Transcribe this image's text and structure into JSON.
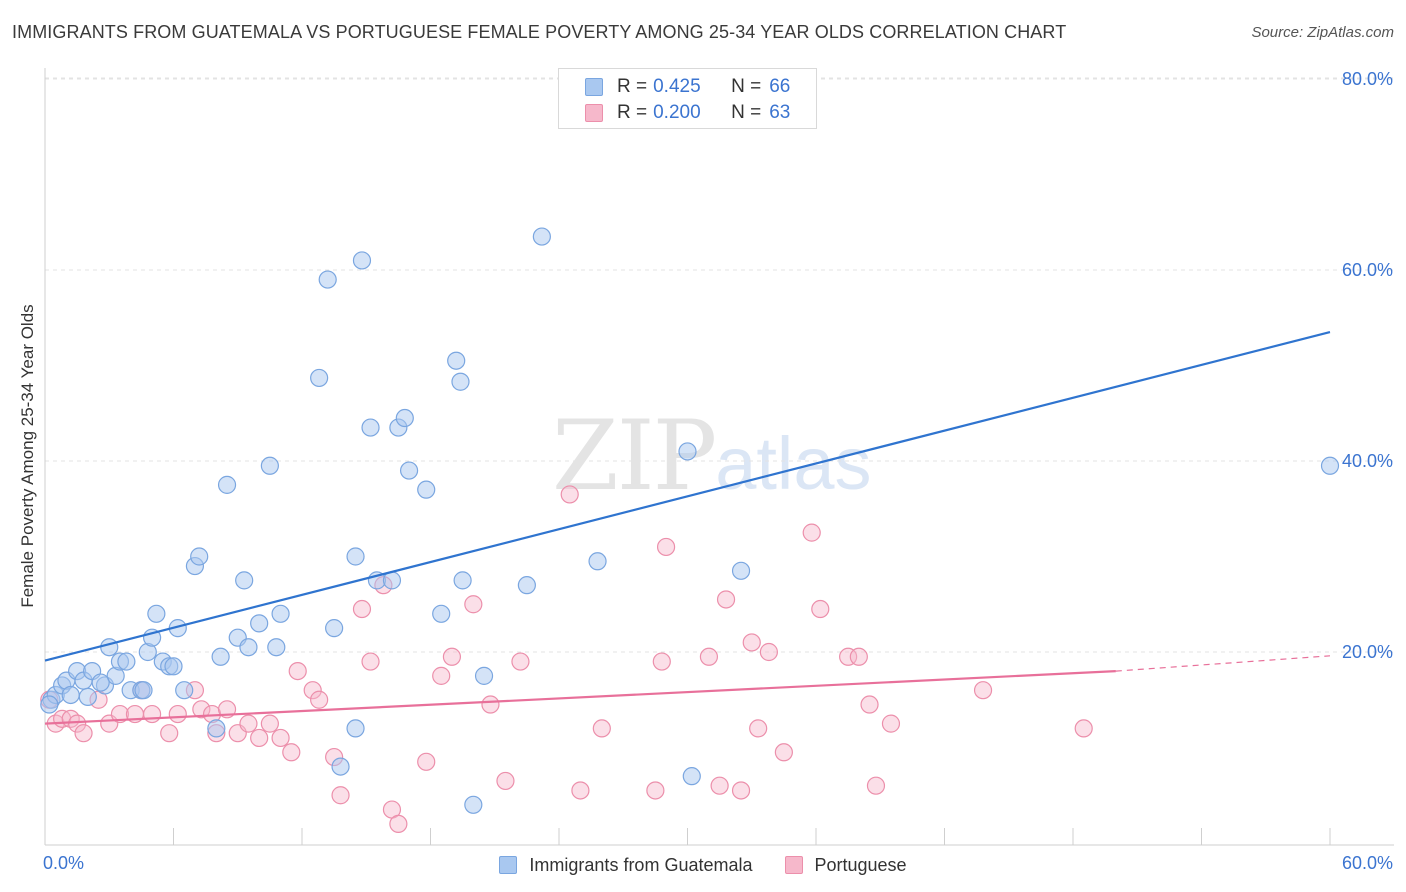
{
  "title": "IMMIGRANTS FROM GUATEMALA VS PORTUGUESE FEMALE POVERTY AMONG 25-34 YEAR OLDS CORRELATION CHART",
  "source": "Source: ZipAtlas.com",
  "watermark": {
    "zip": "ZIP",
    "atlas": "atlas"
  },
  "legend": {
    "rows": [
      {
        "r_label": "R =",
        "r_value": "0.425",
        "n_label": "N =",
        "n_value": "66",
        "color": "#a9c8f0"
      },
      {
        "r_label": "R =",
        "r_value": "0.200",
        "n_label": "N =",
        "n_value": "63",
        "color": "#f6b8cb"
      }
    ]
  },
  "colors": {
    "blue_fill": "#a9c8f0",
    "blue_stroke": "#7aa6e0",
    "blue_line": "#2f74cf",
    "pink_fill": "#f6b8cb",
    "pink_stroke": "#ec8fab",
    "pink_line": "#e8709a",
    "tick_text": "#3b74d0",
    "grid": "#e3e3e3"
  },
  "chart_data": {
    "type": "scatter",
    "title": "IMMIGRANTS FROM GUATEMALA VS PORTUGUESE FEMALE POVERTY AMONG 25-34 YEAR OLDS CORRELATION CHART",
    "xlabel": "",
    "ylabel": "Female Poverty Among 25-34 Year Olds",
    "xlim": [
      0,
      60
    ],
    "ylim": [
      0,
      80
    ],
    "x_tick_labels": [
      "0.0%",
      "60.0%"
    ],
    "y_ticks": [
      20,
      40,
      60,
      80
    ],
    "y_tick_labels": [
      "20.0%",
      "40.0%",
      "60.0%",
      "80.0%"
    ],
    "grid": true,
    "legend_position": "top-center",
    "series": [
      {
        "name": "Immigrants from Guatemala",
        "color": "#a9c8f0",
        "trend": {
          "x": [
            0,
            60
          ],
          "y": [
            19.1,
            53.5
          ]
        },
        "points": [
          [
            0.3,
            15.0
          ],
          [
            0.5,
            15.5
          ],
          [
            0.8,
            16.5
          ],
          [
            1.0,
            17.0
          ],
          [
            1.2,
            15.5
          ],
          [
            1.5,
            18.0
          ],
          [
            1.8,
            17.0
          ],
          [
            2.0,
            15.3
          ],
          [
            2.2,
            18.0
          ],
          [
            2.8,
            16.5
          ],
          [
            3.0,
            20.5
          ],
          [
            3.3,
            17.5
          ],
          [
            3.5,
            19.0
          ],
          [
            3.8,
            19.0
          ],
          [
            4.0,
            16.0
          ],
          [
            4.5,
            16.0
          ],
          [
            4.8,
            20.0
          ],
          [
            5.0,
            21.5
          ],
          [
            5.2,
            24.0
          ],
          [
            5.5,
            19.0
          ],
          [
            5.8,
            18.5
          ],
          [
            6.0,
            18.5
          ],
          [
            6.2,
            22.5
          ],
          [
            6.5,
            16.0
          ],
          [
            7.0,
            29.0
          ],
          [
            7.2,
            30.0
          ],
          [
            8.0,
            12.0
          ],
          [
            8.2,
            19.5
          ],
          [
            8.5,
            37.5
          ],
          [
            9.0,
            21.5
          ],
          [
            9.3,
            27.5
          ],
          [
            9.5,
            20.5
          ],
          [
            10.0,
            23.0
          ],
          [
            10.5,
            39.5
          ],
          [
            10.8,
            20.5
          ],
          [
            11.0,
            24.0
          ],
          [
            12.8,
            48.7
          ],
          [
            13.2,
            59.0
          ],
          [
            13.5,
            22.5
          ],
          [
            13.8,
            8.0
          ],
          [
            14.5,
            30.0
          ],
          [
            14.8,
            61.0
          ],
          [
            14.5,
            12.0
          ],
          [
            15.2,
            43.5
          ],
          [
            15.5,
            27.5
          ],
          [
            16.5,
            43.5
          ],
          [
            16.8,
            44.5
          ],
          [
            16.2,
            27.5
          ],
          [
            17.0,
            39.0
          ],
          [
            17.8,
            37.0
          ],
          [
            18.5,
            24.0
          ],
          [
            19.2,
            50.5
          ],
          [
            19.4,
            48.3
          ],
          [
            19.5,
            27.5
          ],
          [
            20.0,
            4.0
          ],
          [
            20.5,
            17.5
          ],
          [
            22.5,
            27.0
          ],
          [
            23.2,
            63.5
          ],
          [
            25.8,
            29.5
          ],
          [
            30.0,
            41.0
          ],
          [
            30.2,
            7.0
          ],
          [
            32.5,
            28.5
          ],
          [
            60.0,
            39.5
          ],
          [
            0.2,
            14.5
          ],
          [
            4.6,
            16.0
          ],
          [
            2.6,
            16.8
          ]
        ]
      },
      {
        "name": "Portuguese",
        "color": "#f6b8cb",
        "trend": {
          "x": [
            0,
            50
          ],
          "y": [
            12.5,
            18.0
          ]
        },
        "trend_dashed": {
          "x": [
            50,
            60
          ],
          "y": [
            18.0,
            19.6
          ]
        },
        "points": [
          [
            0.2,
            15.0
          ],
          [
            0.5,
            12.5
          ],
          [
            0.8,
            13.0
          ],
          [
            1.2,
            13.0
          ],
          [
            1.5,
            12.5
          ],
          [
            1.8,
            11.5
          ],
          [
            2.5,
            15.0
          ],
          [
            3.0,
            12.5
          ],
          [
            3.5,
            13.5
          ],
          [
            4.2,
            13.5
          ],
          [
            4.5,
            16.0
          ],
          [
            5.0,
            13.5
          ],
          [
            5.8,
            11.5
          ],
          [
            6.2,
            13.5
          ],
          [
            7.0,
            16.0
          ],
          [
            7.3,
            14.0
          ],
          [
            7.8,
            13.5
          ],
          [
            8.0,
            11.5
          ],
          [
            8.5,
            14.0
          ],
          [
            9.0,
            11.5
          ],
          [
            9.5,
            12.5
          ],
          [
            10.0,
            11.0
          ],
          [
            10.5,
            12.5
          ],
          [
            11.0,
            11.0
          ],
          [
            11.5,
            9.5
          ],
          [
            11.8,
            18.0
          ],
          [
            12.5,
            16.0
          ],
          [
            12.8,
            15.0
          ],
          [
            13.5,
            9.0
          ],
          [
            13.8,
            5.0
          ],
          [
            14.8,
            24.5
          ],
          [
            15.2,
            19.0
          ],
          [
            15.8,
            27.0
          ],
          [
            16.2,
            3.5
          ],
          [
            16.5,
            2.0
          ],
          [
            17.8,
            8.5
          ],
          [
            18.5,
            17.5
          ],
          [
            19.0,
            19.5
          ],
          [
            20.0,
            25.0
          ],
          [
            20.8,
            14.5
          ],
          [
            21.5,
            6.5
          ],
          [
            22.2,
            19.0
          ],
          [
            24.5,
            36.5
          ],
          [
            25.0,
            5.5
          ],
          [
            26.0,
            12.0
          ],
          [
            28.5,
            5.5
          ],
          [
            28.8,
            19.0
          ],
          [
            29.0,
            31.0
          ],
          [
            31.0,
            19.5
          ],
          [
            31.5,
            6.0
          ],
          [
            31.8,
            25.5
          ],
          [
            32.5,
            5.5
          ],
          [
            33.0,
            21.0
          ],
          [
            33.3,
            12.0
          ],
          [
            33.8,
            20.0
          ],
          [
            34.5,
            9.5
          ],
          [
            35.8,
            32.5
          ],
          [
            36.2,
            24.5
          ],
          [
            37.5,
            19.5
          ],
          [
            38.0,
            19.5
          ],
          [
            38.5,
            14.5
          ],
          [
            38.8,
            6.0
          ],
          [
            39.5,
            12.5
          ]
        ]
      }
    ],
    "extra_points_series2": [
      [
        43.8,
        16.0
      ],
      [
        48.5,
        12.0
      ]
    ]
  }
}
